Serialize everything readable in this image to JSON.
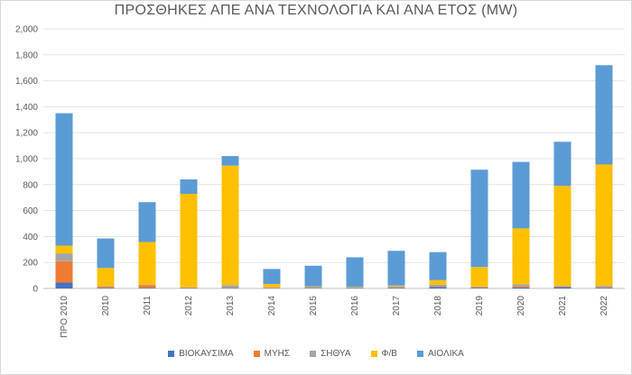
{
  "chart_data": {
    "type": "bar",
    "stacked": true,
    "title": "ΠΡΟΣΘΗΚΕΣ ΑΠΕ ΑΝΑ ΤΕΧΝΟΛΟΓΙΑ ΚΑΙ ΑΝΑ ΕΤΟΣ (MW)",
    "categories": [
      "ΠΡΟ 2010",
      "2010",
      "2011",
      "2012",
      "2013",
      "2014",
      "2015",
      "2016",
      "2017",
      "2018",
      "2019",
      "2020",
      "2021",
      "2022"
    ],
    "series": [
      {
        "name": "ΒΙΟΚΑΥΣΙΜΑ",
        "color": "#4472c4",
        "values": [
          45,
          3,
          5,
          3,
          3,
          2,
          2,
          3,
          3,
          12,
          5,
          8,
          10,
          5
        ]
      },
      {
        "name": "ΜΥΗΣ",
        "color": "#ed7d31",
        "values": [
          165,
          10,
          20,
          3,
          3,
          2,
          2,
          2,
          5,
          5,
          5,
          10,
          5,
          5
        ]
      },
      {
        "name": "ΣΗΘΥΑ",
        "color": "#a5a5a5",
        "values": [
          60,
          5,
          3,
          3,
          20,
          5,
          10,
          5,
          10,
          12,
          5,
          15,
          5,
          10
        ]
      },
      {
        "name": "Φ/Β",
        "color": "#ffc000",
        "values": [
          60,
          140,
          330,
          720,
          920,
          25,
          3,
          3,
          5,
          35,
          150,
          430,
          770,
          935
        ]
      },
      {
        "name": "ΑΙΟΛΙΚΑ",
        "color": "#5b9bd5",
        "values": [
          1020,
          227,
          307,
          111,
          74,
          116,
          158,
          227,
          267,
          216,
          750,
          512,
          340,
          765
        ]
      }
    ],
    "ylim": [
      0,
      2000
    ],
    "yticks": [
      "0",
      "200",
      "400",
      "600",
      "800",
      "1,000",
      "1,200",
      "1,400",
      "1,600",
      "1,800",
      "2,000"
    ],
    "ytick_values": [
      0,
      200,
      400,
      600,
      800,
      1000,
      1200,
      1400,
      1600,
      1800,
      2000
    ],
    "grid": true,
    "legend_position": "bottom"
  }
}
